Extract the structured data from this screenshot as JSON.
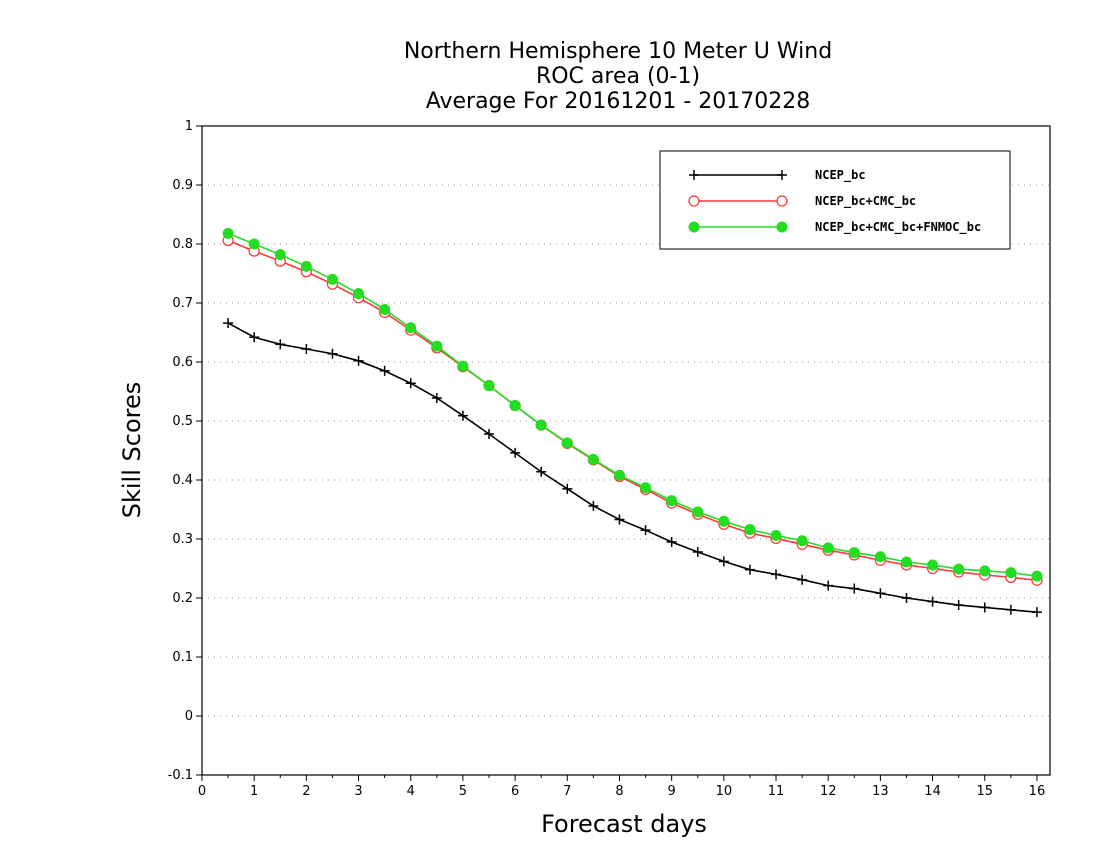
{
  "chart_data": {
    "type": "line",
    "title": [
      "Northern Hemisphere 10 Meter U Wind",
      "ROC area (0-1)",
      "Average For 20161201 - 20170228"
    ],
    "xlabel": "Forecast days",
    "ylabel": "Skill Scores",
    "xlim": [
      0,
      16.25
    ],
    "ylim": [
      -0.1,
      1
    ],
    "xticks": [
      "0",
      "1",
      "2",
      "3",
      "4",
      "5",
      "6",
      "7",
      "8",
      "9",
      "10",
      "11",
      "12",
      "13",
      "14",
      "15",
      "16"
    ],
    "yticks": [
      "-0.1",
      "0",
      "0.1",
      "0.2",
      "0.3",
      "0.4",
      "0.5",
      "0.6",
      "0.7",
      "0.8",
      "0.9",
      "1"
    ],
    "grid": "horizontal dotted",
    "legend_position": "top-right",
    "x": [
      0.5,
      1,
      1.5,
      2,
      2.5,
      3,
      3.5,
      4,
      4.5,
      5,
      5.5,
      6,
      6.5,
      7,
      7.5,
      8,
      8.5,
      9,
      9.5,
      10,
      10.5,
      11,
      11.5,
      12,
      12.5,
      13,
      13.5,
      14,
      14.5,
      15,
      15.5,
      16
    ],
    "series": [
      {
        "name": "NCEP_bc",
        "color": "#000000",
        "marker": "plus",
        "values": [
          0.666,
          0.642,
          0.63,
          0.622,
          0.614,
          0.602,
          0.585,
          0.564,
          0.539,
          0.509,
          0.478,
          0.446,
          0.414,
          0.385,
          0.356,
          0.333,
          0.315,
          0.295,
          0.278,
          0.262,
          0.248,
          0.24,
          0.231,
          0.221,
          0.216,
          0.208,
          0.2,
          0.194,
          0.188,
          0.184,
          0.18,
          0.176
        ]
      },
      {
        "name": "NCEP_bc+CMC_bc",
        "color": "#ff3a3a",
        "marker": "open-circle",
        "values": [
          0.806,
          0.788,
          0.771,
          0.753,
          0.732,
          0.709,
          0.684,
          0.654,
          0.624,
          0.592,
          0.56,
          0.526,
          0.493,
          0.462,
          0.434,
          0.406,
          0.384,
          0.361,
          0.342,
          0.325,
          0.31,
          0.301,
          0.291,
          0.281,
          0.273,
          0.264,
          0.256,
          0.25,
          0.244,
          0.239,
          0.235,
          0.23
        ]
      },
      {
        "name": "NCEP_bc+CMC_bc+FNMOC_bc",
        "color": "#22dd22",
        "marker": "filled-circle",
        "values": [
          0.818,
          0.8,
          0.782,
          0.762,
          0.74,
          0.716,
          0.689,
          0.658,
          0.627,
          0.593,
          0.56,
          0.526,
          0.493,
          0.463,
          0.435,
          0.408,
          0.387,
          0.365,
          0.346,
          0.33,
          0.316,
          0.306,
          0.297,
          0.285,
          0.277,
          0.27,
          0.261,
          0.256,
          0.249,
          0.246,
          0.243,
          0.237
        ]
      }
    ]
  }
}
